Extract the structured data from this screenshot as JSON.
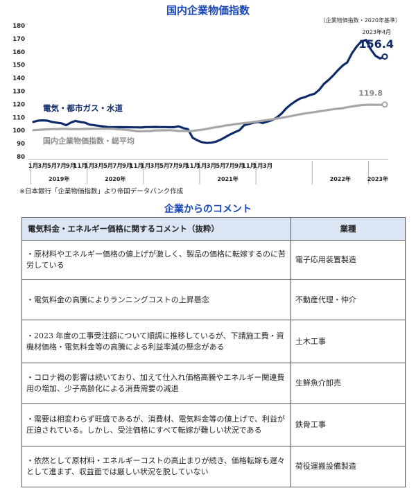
{
  "chart_data": {
    "type": "line",
    "title": "国内企業物価指数",
    "base_note": "（企業物価指数・2020年基準）",
    "ylim": [
      80,
      180
    ],
    "y_ticks": [
      "80",
      "90",
      "100",
      "110",
      "120",
      "130",
      "140",
      "150",
      "160",
      "170",
      "180"
    ],
    "x_month_labels": [
      "1月",
      "3月",
      "5月",
      "7月",
      "9月",
      "11月",
      "1月",
      "3月",
      "5月",
      "7月",
      "9月",
      "11月",
      "1月",
      "3月",
      "5月",
      "7月",
      "9月",
      "11月",
      "1月",
      "3月",
      "5月",
      "7月",
      "9月",
      "11月",
      "1月",
      "3月"
    ],
    "x_year_labels": [
      "2019年",
      "2020年",
      "2021年",
      "2022年",
      "2023年"
    ],
    "series": [
      {
        "name": "電気・都市ガス・水道",
        "color": "#0f2a6b",
        "end_label_top": "2023年4月",
        "end_label": "156.4",
        "values": [
          106.5,
          107.5,
          107.7,
          107.5,
          106.5,
          106,
          105.5,
          104,
          106,
          107.3,
          106.5,
          106,
          104.5,
          104,
          103.5,
          103,
          102.6,
          102.5,
          102.6,
          102.5,
          102.5,
          102.4,
          102.4,
          102.3,
          102.6,
          102.6,
          102.7,
          102.6,
          102.6,
          102.5,
          102.5,
          103.2,
          101.8,
          101,
          94.5,
          92.5,
          91,
          90.5,
          90.7,
          91.5,
          93,
          95,
          97,
          98.7,
          100.2,
          104,
          105,
          106,
          106.5,
          105.7,
          106.8,
          108,
          110,
          113,
          117,
          120,
          122.5,
          124.5,
          125.5,
          127,
          128,
          131,
          135.5,
          138.5,
          142,
          146,
          149.5,
          152,
          159,
          164,
          168,
          169,
          162,
          157,
          155,
          156.4
        ]
      },
      {
        "name": "国内企業物価指数・総平均",
        "color": "#a6a6a6",
        "end_label": "119.8",
        "values": [
          100.2,
          100.5,
          100.7,
          100.9,
          101,
          101.1,
          101.2,
          101.2,
          101.1,
          101,
          101,
          101.2,
          101.2,
          101.3,
          101.3,
          101.3,
          101.3,
          101.2,
          100.9,
          100.7,
          100.5,
          100,
          99.5,
          99.4,
          99.6,
          99.6,
          100,
          100.1,
          100.1,
          100.2,
          100,
          99.6,
          99.7,
          99.5,
          99.6,
          100.2,
          100.6,
          101.2,
          101.9,
          102.5,
          103,
          103.8,
          104.2,
          104.8,
          105.2,
          105.7,
          106,
          106.5,
          107,
          107.5,
          108,
          108.5,
          109.1,
          109.7,
          110.3,
          111,
          111.7,
          112.4,
          113,
          113.5,
          114,
          114.6,
          115.1,
          115.7,
          116.2,
          116.6,
          117,
          117.7,
          118.3,
          118.9,
          119.3,
          119.6,
          119.7,
          119.6,
          119.6,
          119.8
        ]
      }
    ]
  },
  "source_note": "※日本銀行「企業物価指数」より帝国データバンク作成",
  "comments": {
    "title": "企業からのコメント",
    "header_comment": "電気料金・エネルギー価格に関するコメント（抜粋）",
    "header_industry": "業種",
    "rows": [
      {
        "comment": "・原材料やエネルギー価格の値上げが激しく、製品の価格に転嫁するのに苦労している",
        "industry": "電子応用装置製造"
      },
      {
        "comment": "・電気料金の高騰によりランニングコストの上昇懸念",
        "industry": "不動産代理・仲介"
      },
      {
        "comment": "・2023 年度の工事受注額について順調に推移しているが、下請施工費・資機材価格・電気料金等の高騰による利益率減の懸念がある",
        "industry": "土木工事"
      },
      {
        "comment": "・コロナ禍の影響は続いており、加えて仕入れ価格高騰やエネルギー関連費用の増加、少子高齢化による消費需要の減退",
        "industry": "生鮮魚介卸売"
      },
      {
        "comment": "・需要は相変わらず旺盛であるが、消費材、電気料金等の値上げで、利益が圧迫されている。しかし、受注価格にすべて転嫁が難しい状況である",
        "industry": "鉄骨工事"
      },
      {
        "comment": "・依然として原材料・エネルギーコストの高止まりが続き、価格転嫁も遅々として進まず、収益面では厳しい状況を脱していない",
        "industry": "荷役運搬設備製造"
      }
    ]
  }
}
